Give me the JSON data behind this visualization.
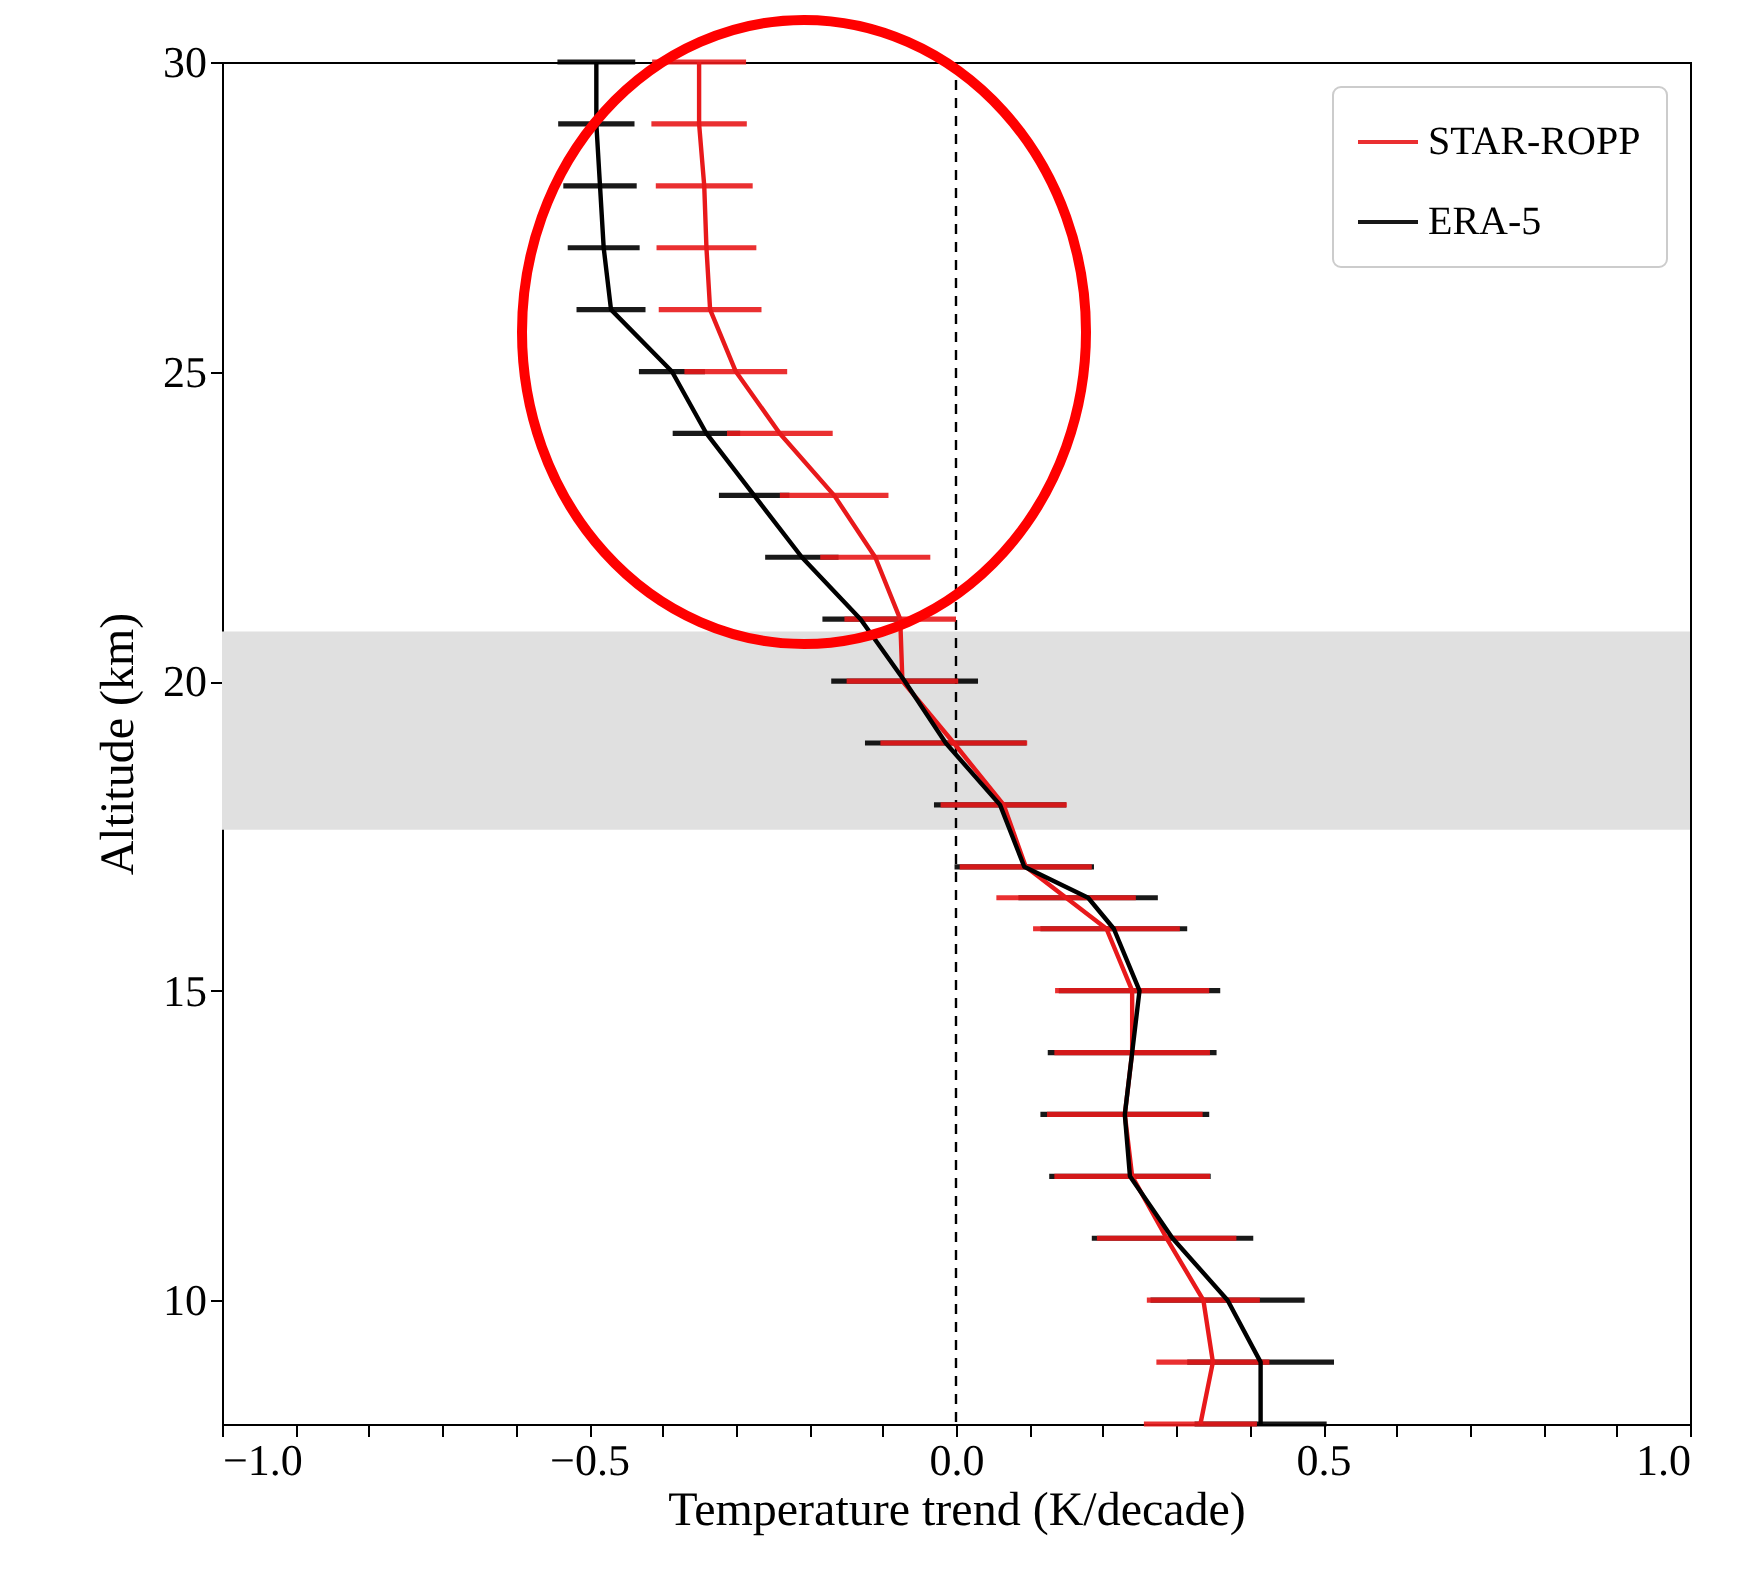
{
  "chart_data": {
    "type": "line",
    "xlabel": "Temperature trend (K/decade)",
    "ylabel": "Altitude (km)",
    "xlim": [
      -1.0,
      1.0
    ],
    "ylim": [
      8,
      30
    ],
    "xticks": [
      {
        "value": -1.0,
        "label": "−1.0"
      },
      {
        "value": -0.9,
        "label": null
      },
      {
        "value": -0.8,
        "label": null
      },
      {
        "value": -0.7,
        "label": null
      },
      {
        "value": -0.6,
        "label": null
      },
      {
        "value": -0.5,
        "label": "−0.5"
      },
      {
        "value": -0.4,
        "label": null
      },
      {
        "value": -0.3,
        "label": null
      },
      {
        "value": -0.2,
        "label": null
      },
      {
        "value": -0.1,
        "label": null
      },
      {
        "value": 0.0,
        "label": "0.0"
      },
      {
        "value": 0.1,
        "label": null
      },
      {
        "value": 0.2,
        "label": null
      },
      {
        "value": 0.3,
        "label": null
      },
      {
        "value": 0.4,
        "label": null
      },
      {
        "value": 0.5,
        "label": "0.5"
      },
      {
        "value": 0.6,
        "label": null
      },
      {
        "value": 0.7,
        "label": null
      },
      {
        "value": 0.8,
        "label": null
      },
      {
        "value": 0.9,
        "label": null
      },
      {
        "value": 1.0,
        "label": "1.0"
      }
    ],
    "yticks": [
      10,
      15,
      20,
      25,
      30
    ],
    "legend": "top right",
    "bands": [
      {
        "axis": "y",
        "from": 17.6,
        "to": 20.8,
        "color": "#e0e0e0"
      }
    ],
    "ref_lines": [
      {
        "axis": "x",
        "value": 0,
        "line_style": "dashed",
        "color": "#000000"
      }
    ],
    "series": [
      {
        "name": "STAR-ROPP",
        "color": "#e8191b",
        "type": "line",
        "values": [
          8,
          9,
          10,
          11,
          12,
          13,
          14,
          15,
          16,
          16.5,
          17,
          18,
          19,
          20,
          21,
          22,
          23,
          24,
          25,
          26,
          27,
          28,
          29,
          30
        ],
        "x": [
          0.333,
          0.35,
          0.337,
          0.287,
          0.24,
          0.23,
          0.24,
          0.24,
          0.205,
          0.15,
          0.095,
          0.065,
          -0.003,
          -0.073,
          -0.076,
          -0.11,
          -0.166,
          -0.24,
          -0.3,
          -0.335,
          -0.34,
          -0.343,
          -0.35,
          -0.35
        ],
        "xerrors": [
          0.077,
          0.077,
          0.077,
          0.095,
          0.106,
          0.106,
          0.106,
          0.105,
          0.1,
          0.095,
          0.09,
          0.086,
          0.1,
          0.076,
          0.076,
          0.075,
          0.074,
          0.072,
          0.07,
          0.07,
          0.068,
          0.066,
          0.065,
          0.064
        ]
      },
      {
        "name": "ERA-5",
        "color": "#000000",
        "type": "line",
        "values": [
          8,
          9,
          10,
          11,
          12,
          13,
          14,
          15,
          16,
          16.5,
          17,
          18,
          19,
          20,
          21,
          22,
          23,
          24,
          25,
          26,
          27,
          28,
          29,
          30
        ],
        "x": [
          0.415,
          0.415,
          0.37,
          0.295,
          0.237,
          0.23,
          0.24,
          0.25,
          0.215,
          0.18,
          0.093,
          0.06,
          -0.014,
          -0.07,
          -0.13,
          -0.21,
          -0.275,
          -0.34,
          -0.387,
          -0.47,
          -0.48,
          -0.485,
          -0.49,
          -0.49
        ],
        "xerrors": [
          0.09,
          0.1,
          0.105,
          0.11,
          0.11,
          0.115,
          0.115,
          0.11,
          0.1,
          0.095,
          0.095,
          0.09,
          0.11,
          0.1,
          0.052,
          0.05,
          0.048,
          0.046,
          0.045,
          0.047,
          0.049,
          0.05,
          0.052,
          0.053
        ]
      }
    ]
  }
}
